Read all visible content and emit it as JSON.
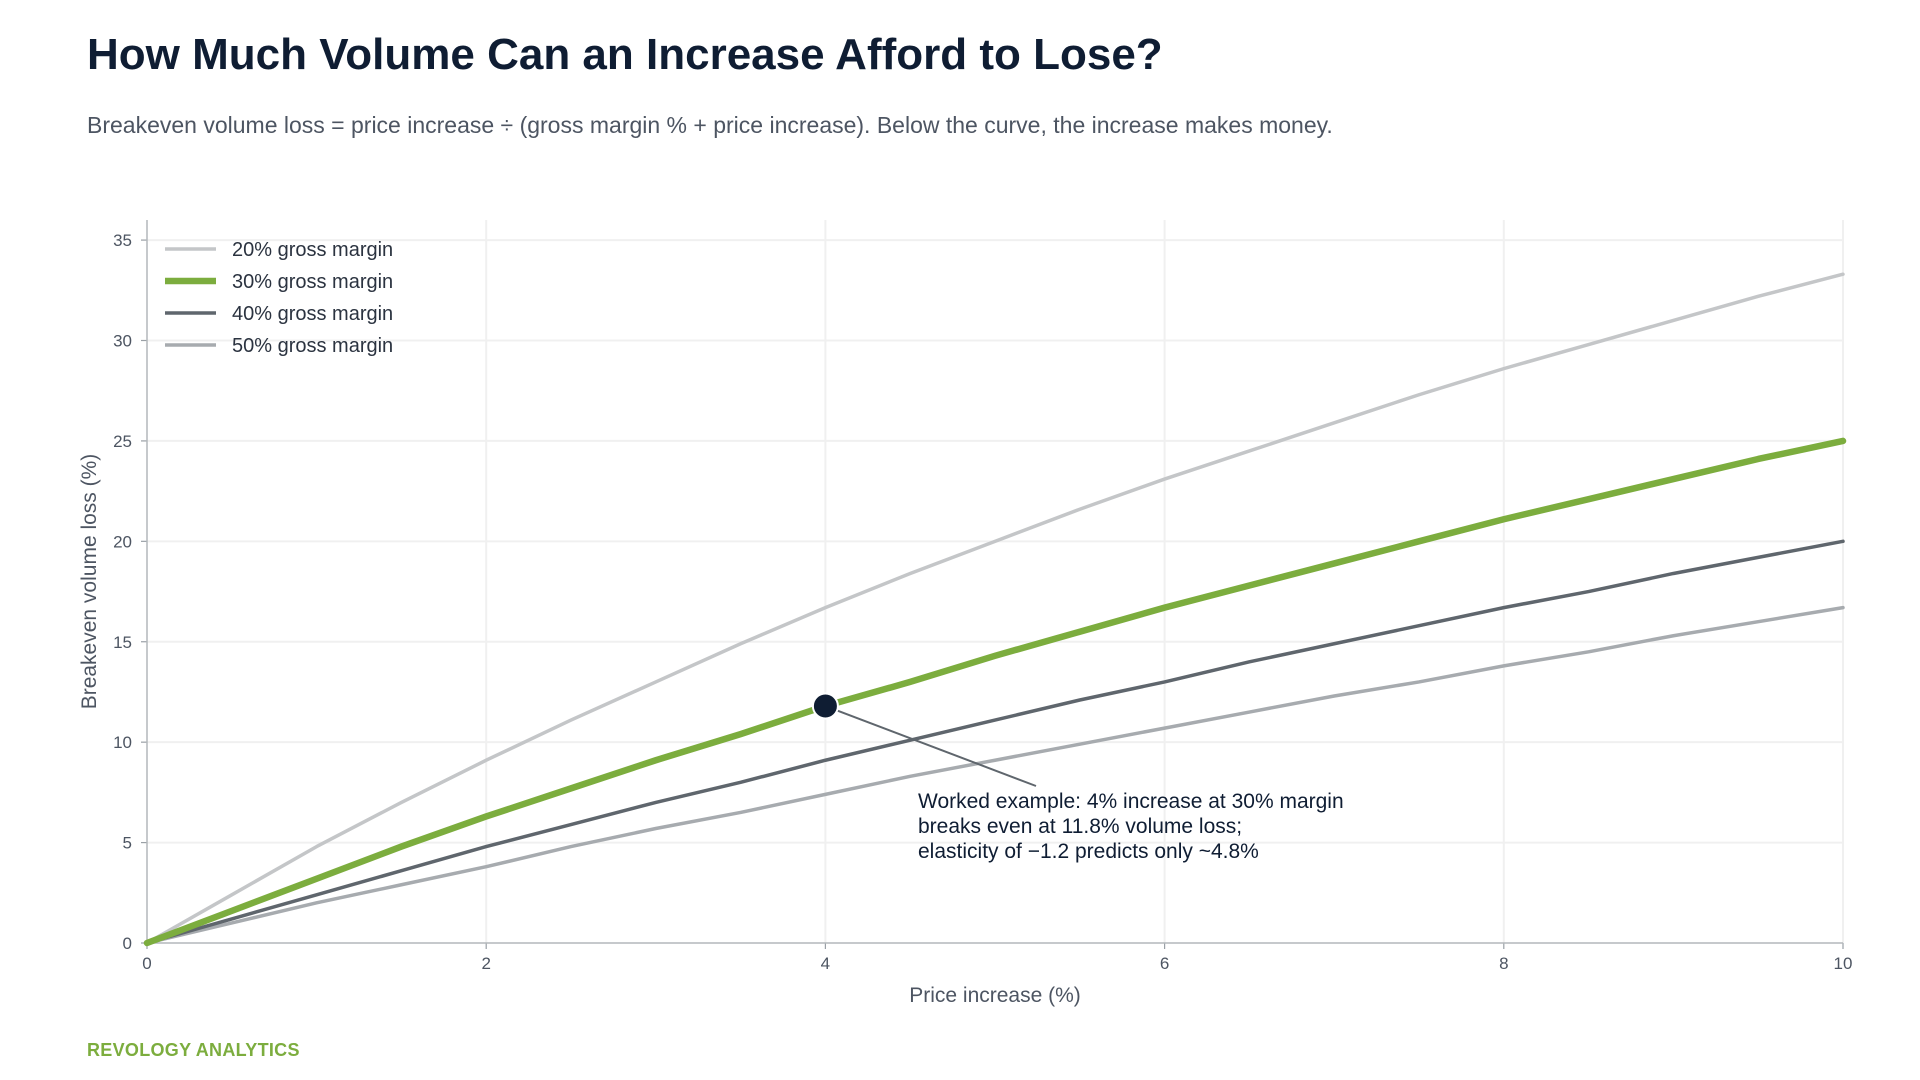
{
  "header": {
    "title": "How Much Volume Can an Increase Afford to Lose?",
    "subtitle": "Breakeven volume loss = price increase ÷ (gross margin % + price increase). Below the curve, the increase makes money."
  },
  "footer": {
    "brand": "REVOLOGY ANALYTICS",
    "brand_color": "#7cad3e"
  },
  "chart_data": {
    "type": "line",
    "xlabel": "Price increase (%)",
    "ylabel": "Breakeven volume loss (%)",
    "xlim": [
      0,
      10
    ],
    "ylim": [
      0,
      36
    ],
    "xticks": [
      "0",
      "2",
      "4",
      "6",
      "8",
      "10"
    ],
    "yticks": [
      "0",
      "5",
      "10",
      "15",
      "20",
      "25",
      "30",
      "35"
    ],
    "grid": true,
    "legend_position": "top-left",
    "x": [
      0,
      0.5,
      1,
      1.5,
      2,
      2.5,
      3,
      3.5,
      4,
      4.5,
      5,
      5.5,
      6,
      6.5,
      7,
      7.5,
      8,
      8.5,
      9,
      9.5,
      10
    ],
    "series": [
      {
        "name": "20% gross margin",
        "color": "#c4c6c8",
        "values": [
          0,
          2.4,
          4.8,
          7.0,
          9.1,
          11.1,
          13.0,
          14.9,
          16.7,
          18.4,
          20.0,
          21.6,
          23.1,
          24.5,
          25.9,
          27.3,
          28.6,
          29.8,
          31.0,
          32.2,
          33.3
        ]
      },
      {
        "name": "30% gross margin",
        "color": "#7cad3e",
        "values": [
          0,
          1.6,
          3.2,
          4.8,
          6.3,
          7.7,
          9.1,
          10.4,
          11.8,
          13.0,
          14.3,
          15.5,
          16.7,
          17.8,
          18.9,
          20.0,
          21.1,
          22.1,
          23.1,
          24.1,
          25.0
        ]
      },
      {
        "name": "40% gross margin",
        "color": "#5f666d",
        "values": [
          0,
          1.2,
          2.4,
          3.6,
          4.8,
          5.9,
          7.0,
          8.0,
          9.1,
          10.1,
          11.1,
          12.1,
          13.0,
          14.0,
          14.9,
          15.8,
          16.7,
          17.5,
          18.4,
          19.2,
          20.0
        ]
      },
      {
        "name": "50% gross margin",
        "color": "#a7abaf",
        "values": [
          0,
          1.0,
          2.0,
          2.9,
          3.8,
          4.8,
          5.7,
          6.5,
          7.4,
          8.3,
          9.1,
          9.9,
          10.7,
          11.5,
          12.3,
          13.0,
          13.8,
          14.5,
          15.3,
          16.0,
          16.7
        ]
      }
    ],
    "annotation": {
      "point": {
        "x": 4,
        "y": 11.8
      },
      "lines": [
        "Worked example: 4% increase at 30% margin",
        "breaks even at 11.8% volume loss;",
        "elasticity of −1.2 predicts only ~4.8%"
      ],
      "marker_color": "#0f1d33"
    }
  }
}
